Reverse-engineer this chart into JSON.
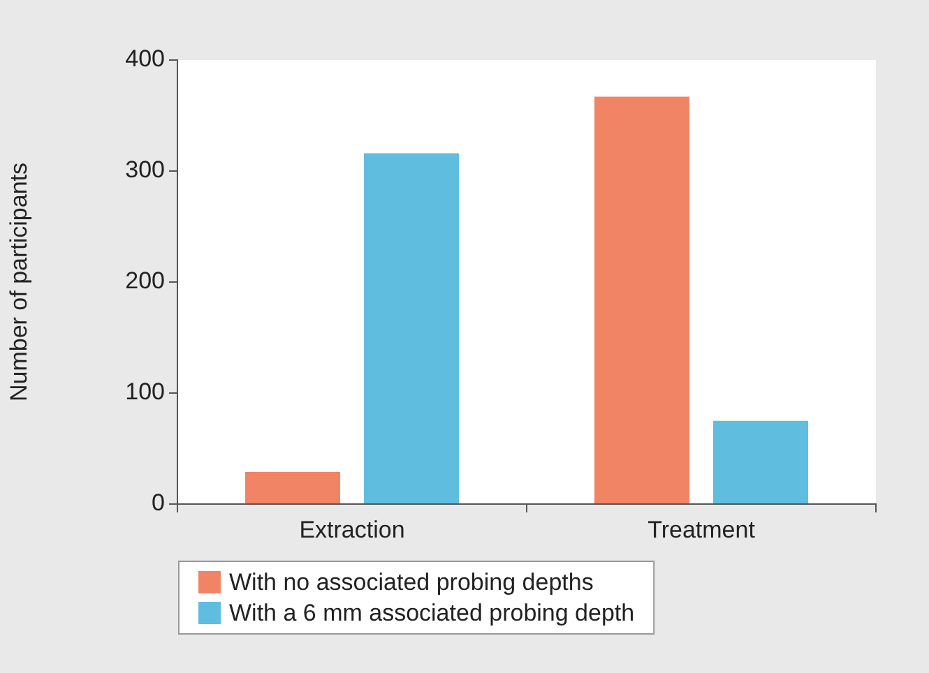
{
  "chart_data": {
    "type": "bar",
    "ylabel": "Number of participants",
    "categories": [
      "Extraction",
      "Treatment"
    ],
    "series": [
      {
        "name": "With no associated probing depths",
        "color": "#f28466",
        "values": [
          29,
          367
        ]
      },
      {
        "name": "With a 6 mm associated probing depth",
        "color": "#5fbee0",
        "values": [
          316,
          75
        ]
      }
    ],
    "ylim": [
      0,
      400
    ],
    "yticks": [
      0,
      100,
      200,
      300,
      400
    ],
    "legend": "bottom"
  }
}
